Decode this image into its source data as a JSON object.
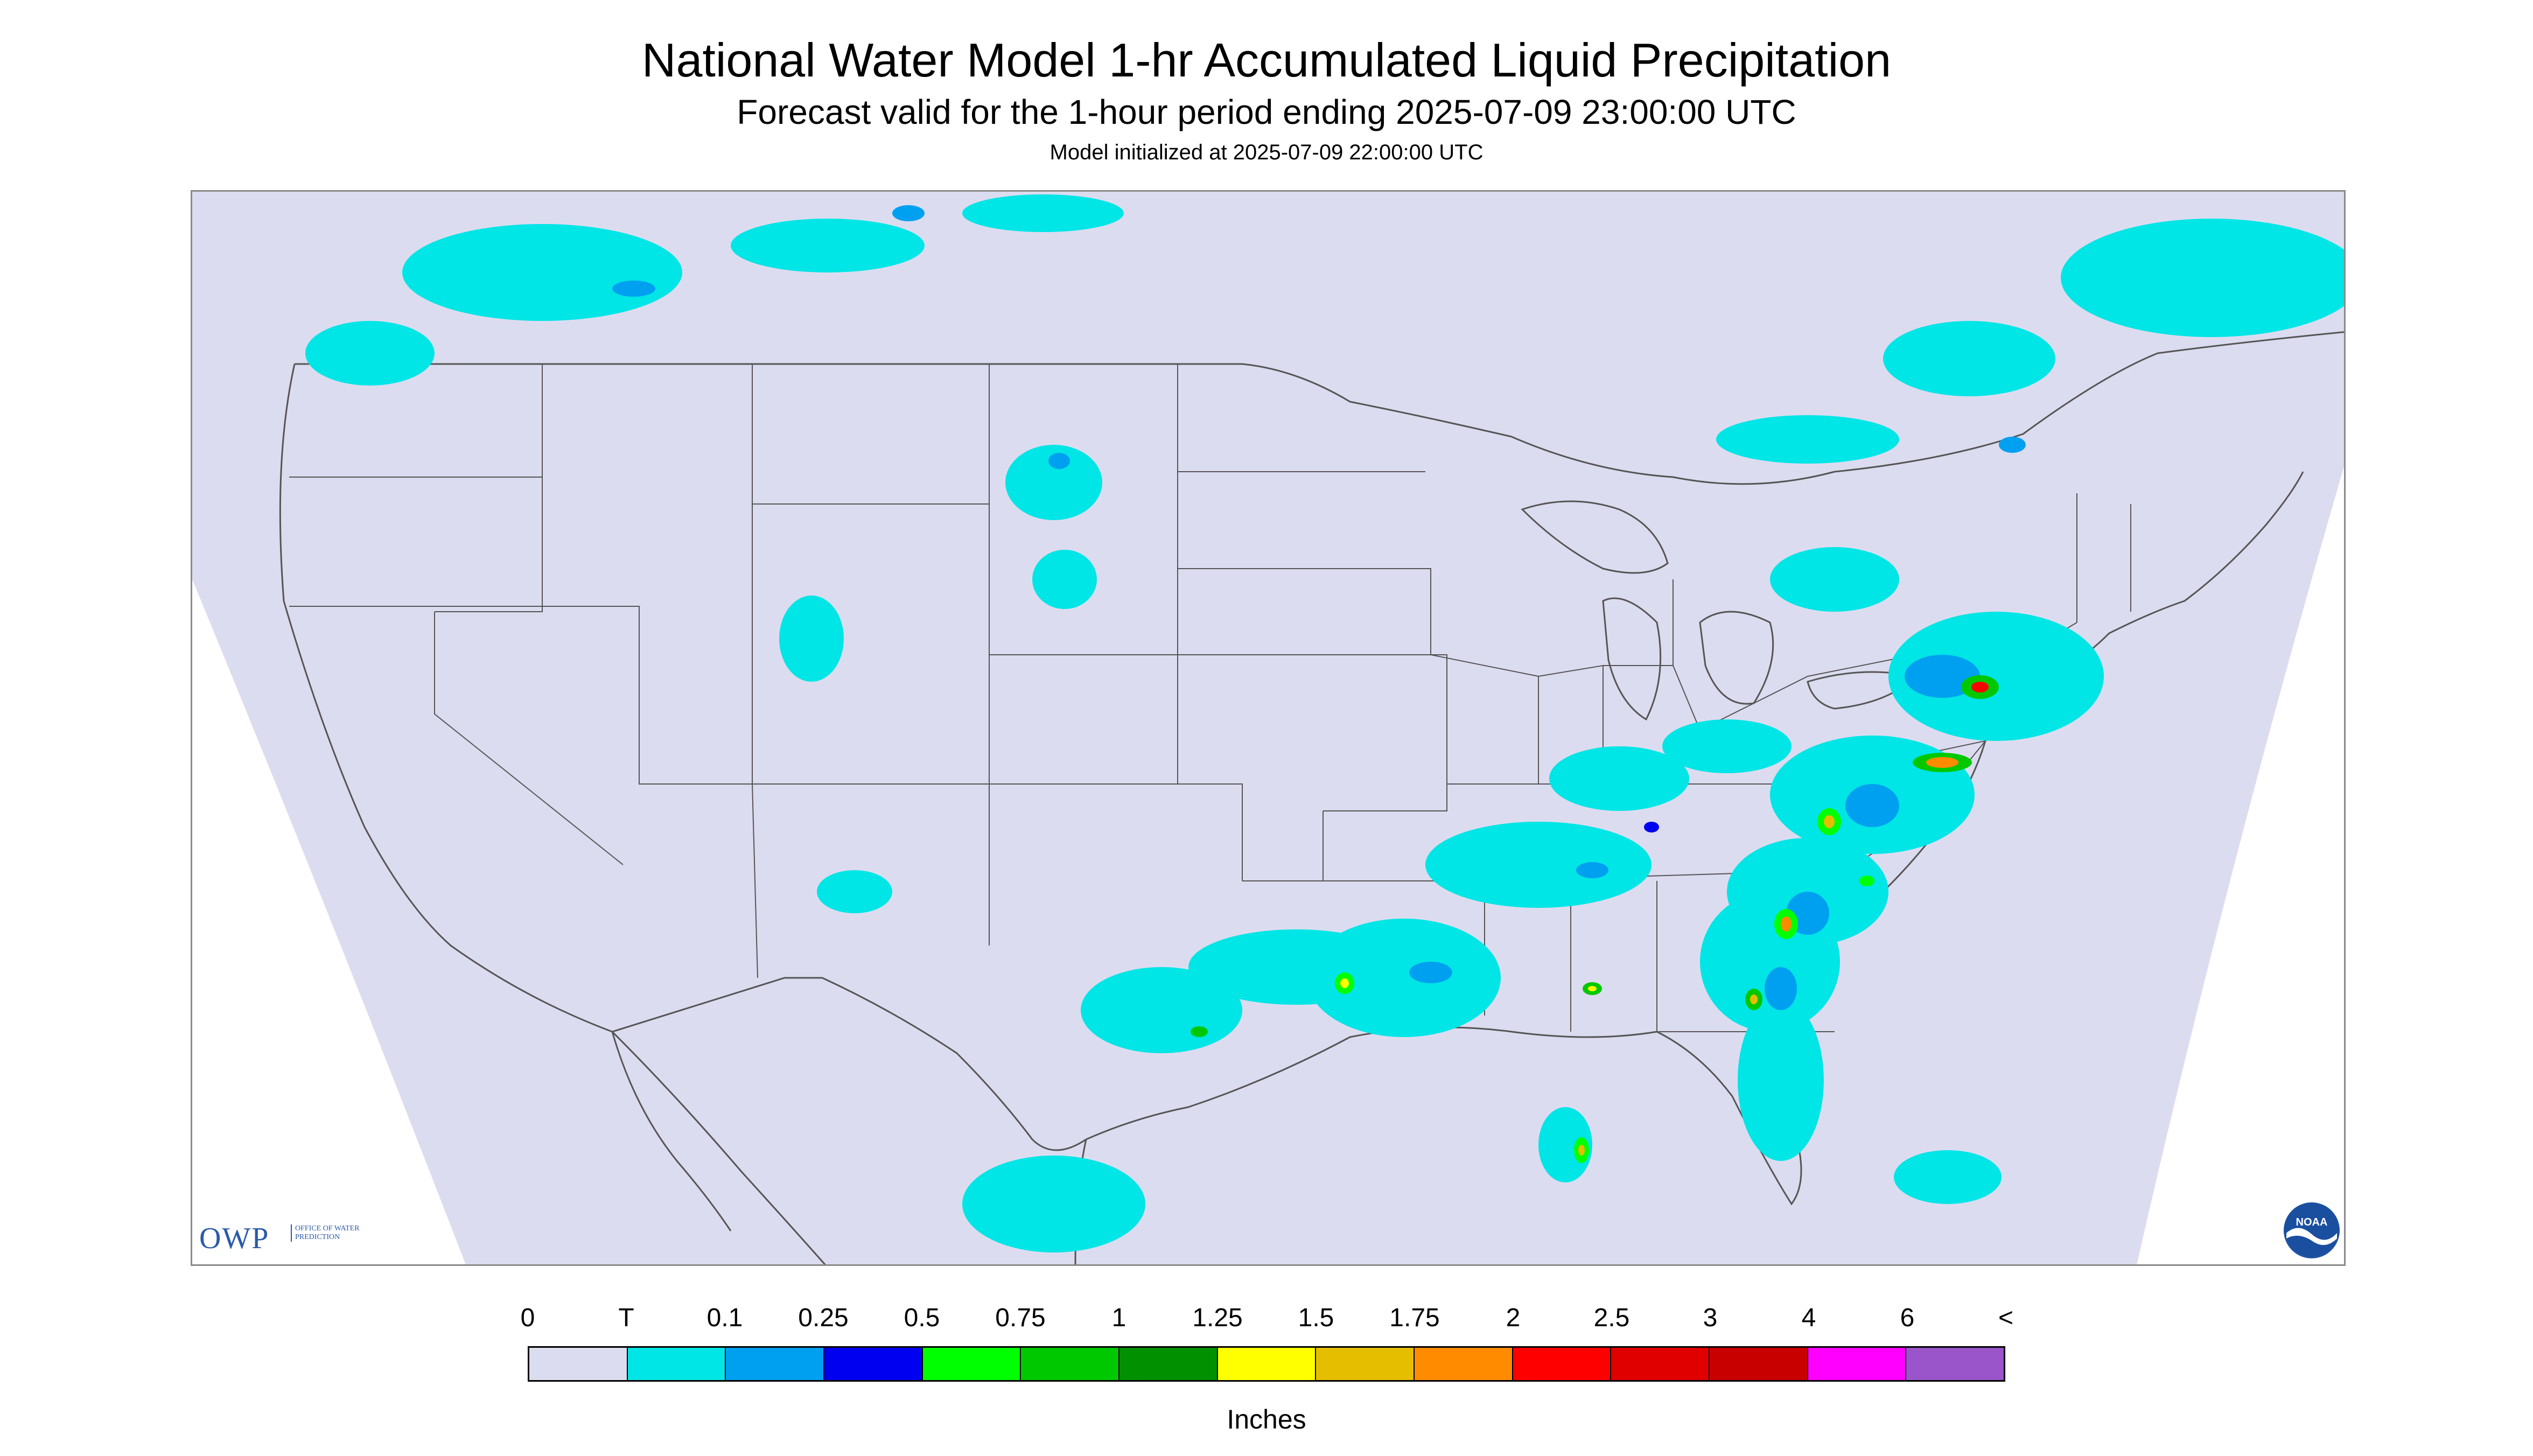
{
  "header": {
    "title": "National Water Model 1-hr Accumulated Liquid Precipitation",
    "subtitle": "Forecast valid for the 1-hour period ending 2025-07-09 23:00:00 UTC",
    "init": "Model initialized at 2025-07-09 22:00:00 UTC"
  },
  "logos": {
    "owp_main": "OWP",
    "owp_sub": "OFFICE OF WATER PREDICTION",
    "noaa": "NOAA"
  },
  "legend": {
    "units": "Inches",
    "labels": [
      "0",
      "T",
      "0.1",
      "0.25",
      "0.5",
      "0.75",
      "1",
      "1.25",
      "1.5",
      "1.75",
      "2",
      "2.5",
      "3",
      "4",
      "6",
      "<"
    ],
    "colors": [
      "#dcdcf0",
      "#00e5e5",
      "#00a0f0",
      "#0000f0",
      "#00ff00",
      "#00c800",
      "#009000",
      "#ffff00",
      "#e6be00",
      "#ff8c00",
      "#ff0000",
      "#e00000",
      "#c80000",
      "#ff00ff",
      "#9955c9"
    ]
  },
  "map": {
    "background_color": "#dcdcf0",
    "outline_color": "#555555",
    "trace_color": "#00e5e5"
  }
}
